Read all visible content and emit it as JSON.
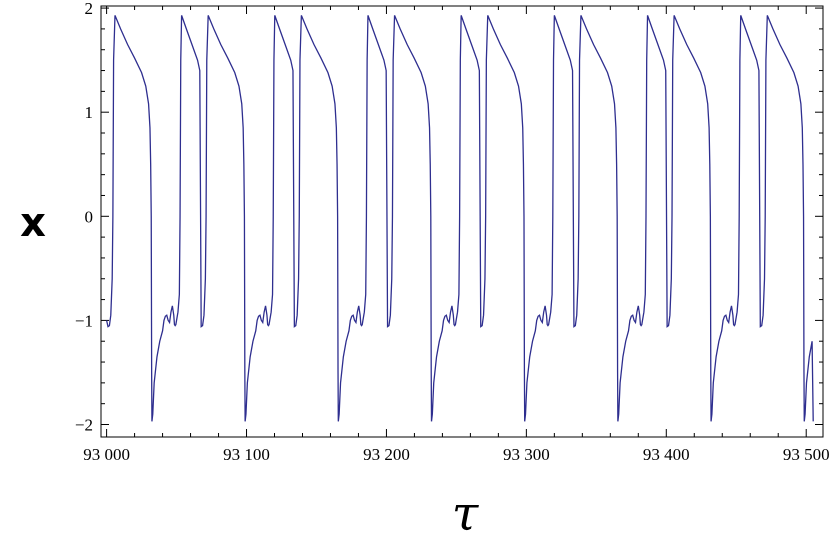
{
  "chart_data": {
    "type": "line",
    "title": "",
    "xlabel": "τ",
    "ylabel": "x",
    "xlim": [
      92996,
      93512
    ],
    "ylim": [
      -2.12,
      2.02
    ],
    "grid": false,
    "x_ticks": [
      93000,
      93100,
      93200,
      93300,
      93400,
      93500
    ],
    "x_tick_labels": [
      "93 000",
      "93 100",
      "93 200",
      "93 300",
      "93 400",
      "93 500"
    ],
    "y_ticks": [
      -2,
      -1,
      0,
      1,
      2
    ],
    "y_tick_labels": [
      "−2",
      "−1",
      "0",
      "1",
      "2"
    ],
    "line_color": "#2e2e8f",
    "series": [
      {
        "period": 66.6,
        "waveform_phase_x_pairs": [
          [
            0,
            -1
          ],
          [
            1,
            -1.06
          ],
          [
            2,
            -1.05
          ],
          [
            3,
            -0.95
          ],
          [
            4,
            -0.6
          ],
          [
            4.5,
            0
          ],
          [
            5,
            1.5
          ],
          [
            6,
            1.93
          ],
          [
            10,
            1.8
          ],
          [
            15,
            1.65
          ],
          [
            20,
            1.52
          ],
          [
            25,
            1.38
          ],
          [
            28,
            1.25
          ],
          [
            30,
            1.08
          ],
          [
            31,
            0.85
          ],
          [
            31.5,
            0.5
          ],
          [
            31.9,
            0
          ],
          [
            32.2,
            -1.5
          ],
          [
            32.4,
            -1.97
          ],
          [
            33,
            -1.9
          ],
          [
            34,
            -1.6
          ],
          [
            36,
            -1.35
          ],
          [
            38,
            -1.2
          ],
          [
            40,
            -1.1
          ],
          [
            41,
            -1.0
          ],
          [
            42,
            -0.96
          ],
          [
            43,
            -0.95
          ],
          [
            44,
            -1.0
          ],
          [
            45,
            -1.02
          ],
          [
            46,
            -0.92
          ],
          [
            47,
            -0.86
          ],
          [
            48,
            -0.95
          ],
          [
            48.5,
            -1.04
          ],
          [
            49,
            -1.05
          ],
          [
            49.5,
            -1.04
          ],
          [
            50,
            -1.0
          ],
          [
            51,
            -0.92
          ],
          [
            52,
            -0.75
          ],
          [
            52.5,
            0
          ],
          [
            53,
            1.5
          ],
          [
            53.6,
            1.93
          ],
          [
            57,
            1.8
          ],
          [
            61,
            1.65
          ],
          [
            65,
            1.5
          ],
          [
            66.6,
            1.4
          ]
        ],
        "start": 93000,
        "end": 93505
      }
    ]
  }
}
